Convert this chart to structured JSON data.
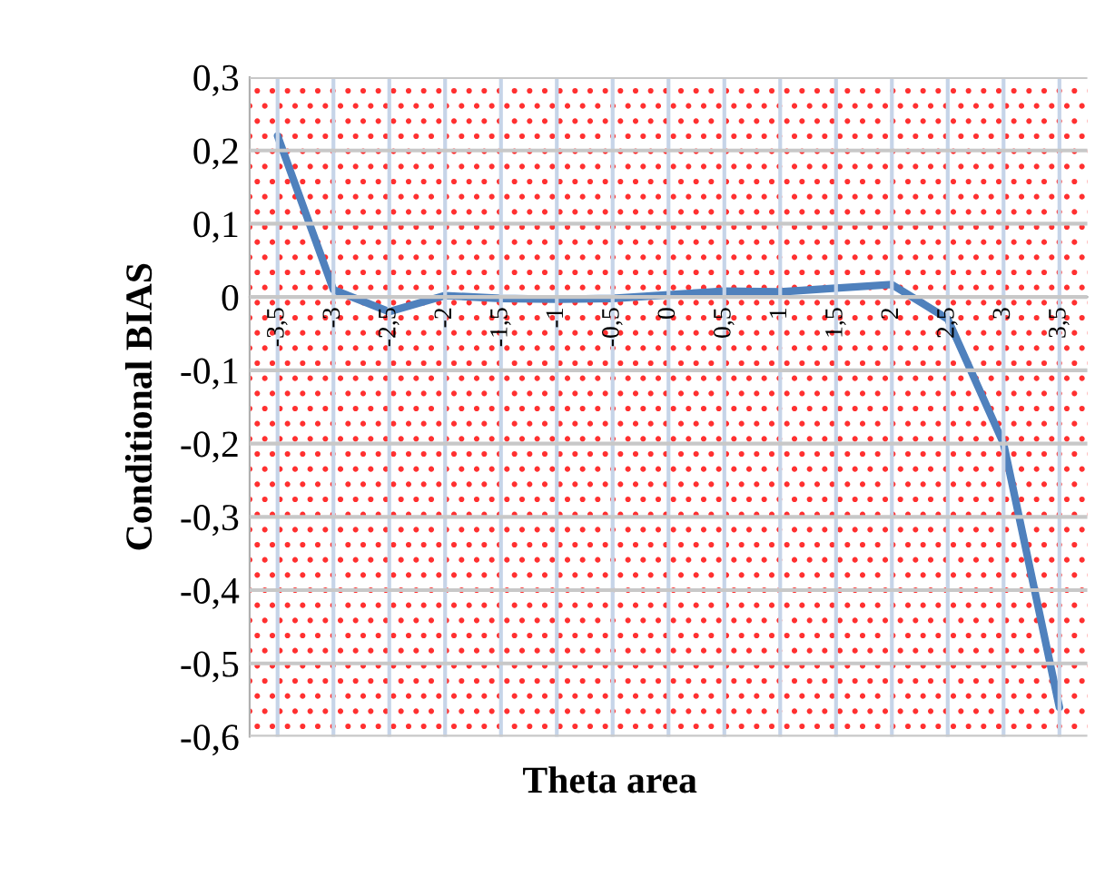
{
  "chart_data": {
    "type": "line",
    "xlabel": "Theta area",
    "ylabel": "Conditional BIAS",
    "categories": [
      "-3,5",
      "-3",
      "-2,5",
      "-2",
      "-1,5",
      "-1",
      "-0,5",
      "0",
      "0,5",
      "1",
      "1,5",
      "2",
      "2,5",
      "3",
      "3,5"
    ],
    "series": [
      {
        "color": "#4f81bd",
        "values": [
          0.22,
          0.01,
          -0.02,
          0.002,
          -0.002,
          -0.003,
          -0.002,
          0.003,
          0.008,
          0.007,
          0.012,
          0.017,
          -0.03,
          -0.2,
          -0.56
        ]
      }
    ],
    "ylim": [
      -0.6,
      0.3
    ],
    "yticks": [
      {
        "value": 0.3,
        "label": "0,3"
      },
      {
        "value": 0.2,
        "label": "0,2"
      },
      {
        "value": 0.1,
        "label": "0,1"
      },
      0,
      {
        "value": -0.1,
        "label": "-0,1"
      },
      {
        "value": -0.2,
        "label": "-0,2"
      },
      {
        "value": -0.3,
        "label": "-0,3"
      },
      {
        "value": -0.4,
        "label": "-0,4"
      },
      {
        "value": -0.5,
        "label": "-0,5"
      },
      {
        "value": -0.6,
        "label": "-0,6"
      }
    ],
    "grid": true,
    "marker": "none",
    "line_style": "solid",
    "legend": false
  }
}
